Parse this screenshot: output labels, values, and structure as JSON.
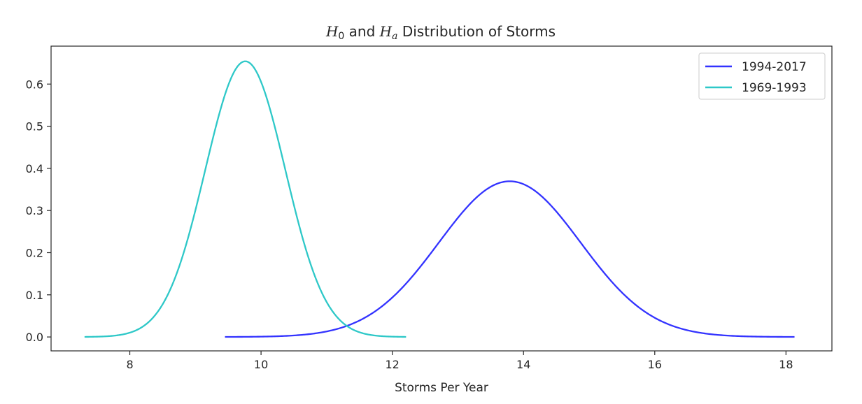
{
  "chart_data": {
    "type": "line",
    "title": {
      "parts": [
        {
          "text": "H",
          "style": "italic"
        },
        {
          "text": "0",
          "style": "sub"
        },
        {
          "text": " and ",
          "style": "normal"
        },
        {
          "text": "H",
          "style": "italic"
        },
        {
          "text": "a",
          "style": "sub-italic"
        },
        {
          "text": " Distribution of Storms",
          "style": "normal"
        }
      ]
    },
    "xlabel": "Storms Per Year",
    "ylabel": "",
    "xlim": [
      6.8,
      18.7
    ],
    "ylim": [
      -0.033,
      0.69
    ],
    "xticks": [
      8,
      10,
      12,
      14,
      16,
      18
    ],
    "yticks": [
      0.0,
      0.1,
      0.2,
      0.3,
      0.4,
      0.5,
      0.6
    ],
    "ytick_labels": [
      "0.0",
      "0.1",
      "0.2",
      "0.3",
      "0.4",
      "0.5",
      "0.6"
    ],
    "grid": false,
    "legend": {
      "position": "top-right"
    },
    "series": [
      {
        "name": "1994-2017",
        "color": "#3333ff",
        "distribution": "normal",
        "mean": 13.79,
        "std": 1.08,
        "x_range": [
          9.45,
          18.13
        ]
      },
      {
        "name": "1969-1993",
        "color": "#2ec8c8",
        "distribution": "normal",
        "mean": 9.76,
        "std": 0.61,
        "x_range": [
          7.31,
          12.21
        ]
      }
    ]
  }
}
